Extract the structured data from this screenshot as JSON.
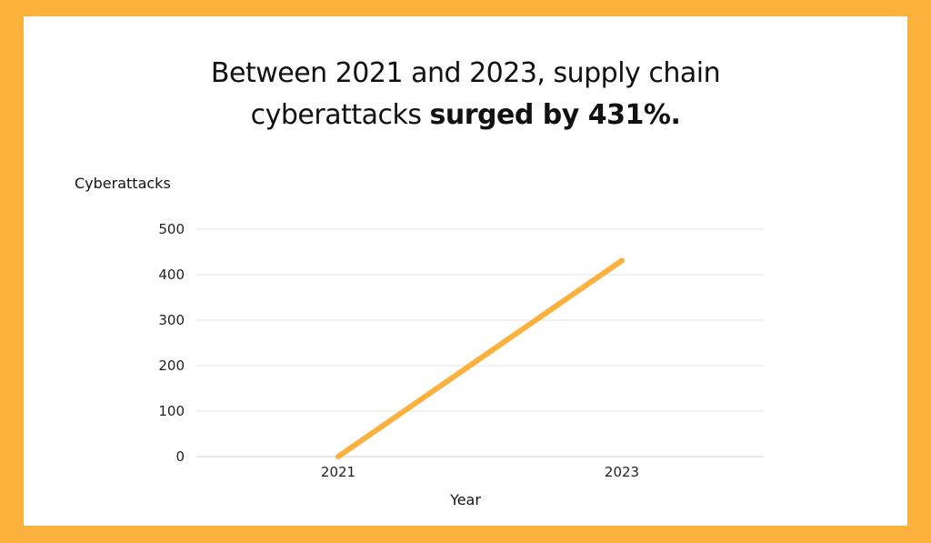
{
  "headline": {
    "line1": "Between 2021 and 2023, supply chain",
    "line2_prefix": "cyberattacks ",
    "line2_emphasis": "surged by 431%."
  },
  "colors": {
    "frame": "#FBB13C",
    "line": "#FBB13C",
    "gridline": "#E6E6E6",
    "background": "#FFFFFF"
  },
  "chart_data": {
    "type": "line",
    "categories": [
      "2021",
      "2023"
    ],
    "series": [
      {
        "values": [
          0,
          431
        ]
      }
    ],
    "xlabel": "Year",
    "ylabel": "Cyberattacks",
    "ylim": [
      0,
      500
    ],
    "yticks": [
      "0",
      "100",
      "200",
      "300",
      "400",
      "500"
    ],
    "grid": true,
    "legend": "none"
  }
}
